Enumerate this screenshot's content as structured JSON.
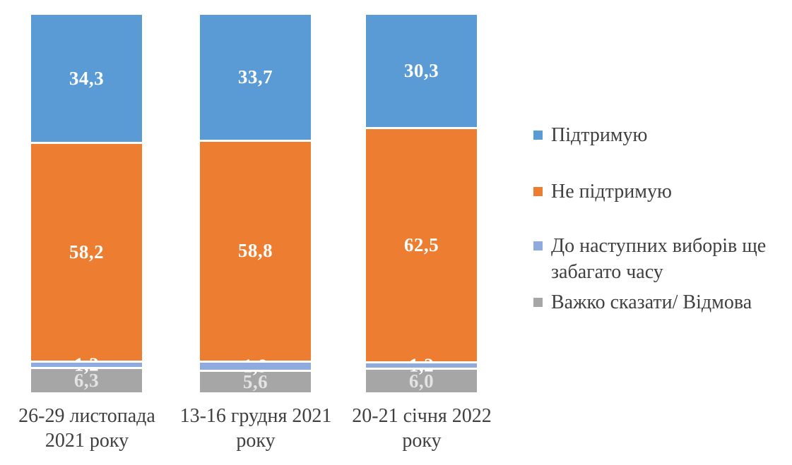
{
  "chart_data": {
    "type": "bar",
    "stacked": true,
    "orientation": "vertical",
    "unit": "percent",
    "title": "",
    "xlabel": "",
    "ylabel": "",
    "ylim": [
      0,
      100
    ],
    "grid": false,
    "axes_visible": false,
    "legend_position": "right",
    "background": "#FFFFFF",
    "text_color": "#404040",
    "categories": [
      "26-29 листопада 2021 року",
      "13-16 грудня 2021 року",
      "20-21 січня 2022 року"
    ],
    "series": [
      {
        "name": "Підтримую",
        "color": "#5B9BD5",
        "label_color": "#FFFFFF",
        "values": [
          34.3,
          33.7,
          30.3
        ],
        "labels": [
          "34,3",
          "33,7",
          "30,3"
        ]
      },
      {
        "name": "Не підтримую",
        "color": "#ED7D31",
        "label_color": "#FFFFFF",
        "values": [
          58.2,
          58.8,
          62.5
        ],
        "labels": [
          "58,2",
          "58,8",
          "62,5"
        ]
      },
      {
        "name": "До наступних виборів ще забагато часу",
        "color": "#8FAADC",
        "label_color": "#FFFFFF",
        "values": [
          1.2,
          1.9,
          1.2
        ],
        "labels": [
          "1,2",
          "1,9",
          "1,2"
        ]
      },
      {
        "name": "Важко сказати/ Відмова",
        "color": "#A6A6A6",
        "label_color": "#E3E3E3",
        "values": [
          6.3,
          5.6,
          6.0
        ],
        "labels": [
          "6,3",
          "5,6",
          "6,0"
        ]
      }
    ]
  }
}
